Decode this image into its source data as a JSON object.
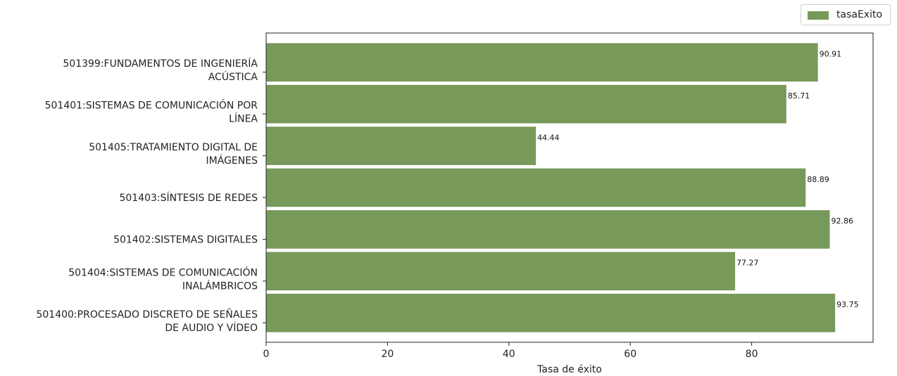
{
  "chart_data": {
    "type": "bar",
    "orientation": "horizontal",
    "categories": [
      "501399:FUNDAMENTOS DE INGENIERÍA\nACÚSTICA",
      "501401:SISTEMAS DE COMUNICACIÓN POR\nLÍNEA",
      "501405:TRATAMIENTO DIGITAL DE\nIMÁGENES",
      "501403:SÍNTESIS DE REDES",
      "501402:SISTEMAS DIGITALES",
      "501404:SISTEMAS DE COMUNICACIÓN\nINALÁMBRICOS",
      "501400:PROCESADO DISCRETO DE SEÑALES\nDE AUDIO Y VÍDEO"
    ],
    "series": [
      {
        "name": "tasaExito",
        "values": [
          90.91,
          85.71,
          44.44,
          88.89,
          92.86,
          77.27,
          93.75
        ],
        "color": "#77995a"
      }
    ],
    "data_labels": [
      "90.91",
      "85.71",
      "44.44",
      "88.89",
      "92.86",
      "77.27",
      "93.75"
    ],
    "title": "",
    "xlabel": "Tasa de éxito",
    "ylabel": "",
    "xlim": [
      0,
      100
    ],
    "xticks": [
      0,
      20,
      40,
      60,
      80
    ],
    "grid": false,
    "legend_position": "top-right"
  }
}
